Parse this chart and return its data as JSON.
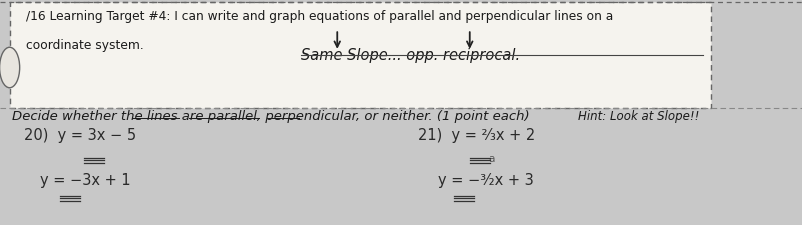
{
  "bg_color": "#c8c8c8",
  "paper_color": "#e8e5df",
  "box_facecolor": "#f5f3ee",
  "header_line1": "/16 Learning Target #4: I can write and graph equations of parallel and perpendicular lines on a",
  "header_line2": "coordinate system.",
  "handwritten": "Same Slope... opp. reciprocal.",
  "hint_text": "Hint: Look at Slope!!",
  "divider_text": "Decide whether the lines are parallel, perpendicular, or neither. (1 point each)",
  "q20_eq1": "20)  y = 3x − 5",
  "q20_eq2": "      y = −3x + 1",
  "q21_eq1": "21)  y = ²⁄₃x + 2",
  "q21_eq2": "       y = −³⁄₂x + 3",
  "text_color": "#1a1a1a",
  "dark_text": "#2a2a2a",
  "box_edge_color": "#666666",
  "header_fs": 8.8,
  "body_fs": 9.5,
  "eq_fs": 10.5,
  "hint_fs": 8.5,
  "hand_fs": 10.5,
  "arrow1_xstart": 0.42,
  "arrow1_xend": 0.42,
  "arrow2_xstart": 0.585,
  "arrow2_xend": 0.585,
  "arrow_ytop": 0.87,
  "arrow_ybot": 0.77
}
